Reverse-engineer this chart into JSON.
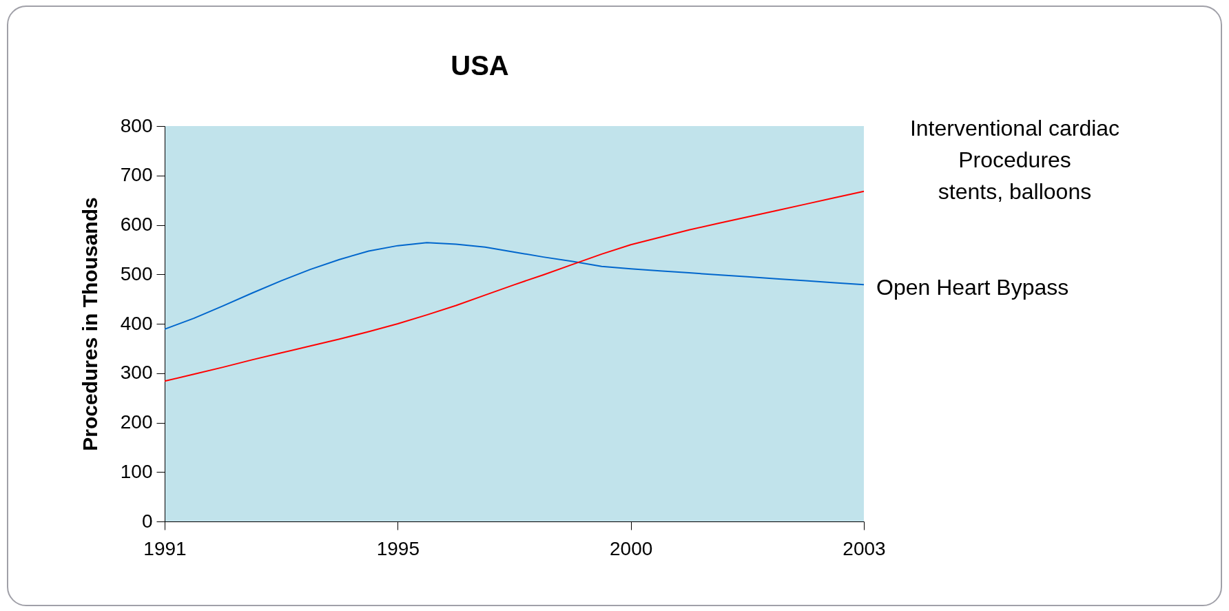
{
  "chart_data": {
    "type": "line",
    "title": "USA",
    "ylabel": "Procedures in Thousands",
    "categories": [
      "1991",
      null,
      null,
      null,
      null,
      null,
      null,
      null,
      "1995",
      null,
      null,
      null,
      null,
      null,
      null,
      null,
      "2000",
      null,
      null,
      null,
      null,
      null,
      null,
      null,
      "2003"
    ],
    "series": [
      {
        "name": "Open Heart Bypass",
        "color": "#0066cc",
        "values": [
          389,
          411,
          436,
          462,
          487,
          510,
          530,
          547,
          558,
          564,
          561,
          555,
          545,
          535,
          526,
          516,
          511,
          507,
          503,
          499,
          495,
          491,
          487,
          483,
          479
        ]
      },
      {
        "name": "Interventional cardiac\nProcedures\nstents, balloons",
        "color": "#ff0000",
        "values": [
          284,
          298,
          312,
          327,
          341,
          355,
          369,
          384,
          400,
          418,
          437,
          458,
          479,
          499,
          520,
          541,
          560,
          575,
          590,
          603,
          616,
          629,
          642,
          655,
          668
        ]
      }
    ],
    "ylim": [
      0,
      800
    ],
    "yticks": [
      0,
      100,
      200,
      300,
      400,
      500,
      600,
      700,
      800
    ],
    "grid": false,
    "legend": false,
    "marker": "none",
    "line_style": "solid"
  }
}
